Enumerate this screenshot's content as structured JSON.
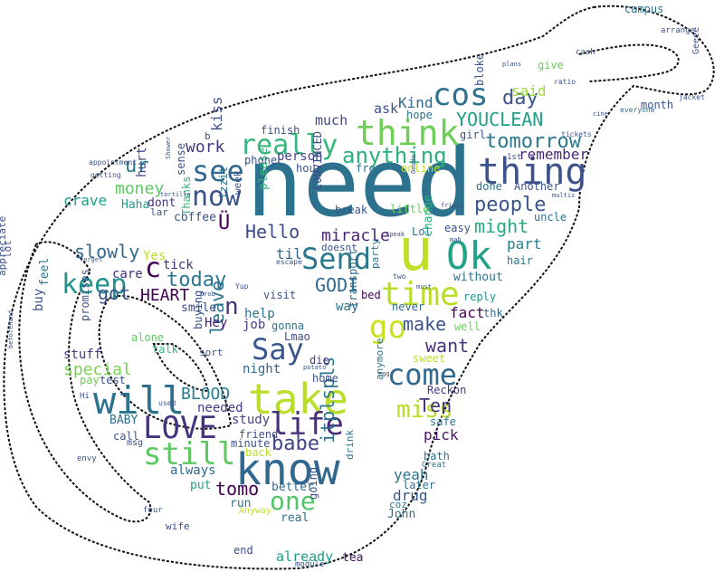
{
  "words": [
    {
      "text": "need",
      "color": "#2c728e"
    },
    {
      "text": "u",
      "color": "#bddf26"
    },
    {
      "text": "Ok",
      "color": "#20a386"
    },
    {
      "text": "know",
      "color": "#31688e"
    },
    {
      "text": "take",
      "color": "#b8de29"
    },
    {
      "text": "will",
      "color": "#2c728e"
    },
    {
      "text": "thing",
      "color": "#3b528b"
    },
    {
      "text": "think",
      "color": "#6ece58"
    },
    {
      "text": "time",
      "color": "#b8de29"
    },
    {
      "text": "Send",
      "color": "#2a788e"
    },
    {
      "text": "Say",
      "color": "#39568c"
    },
    {
      "text": "come",
      "color": "#31688e"
    },
    {
      "text": "LOVE",
      "color": "#46337e"
    },
    {
      "text": "life",
      "color": "#472d7b"
    },
    {
      "text": "still",
      "color": "#5ec962"
    },
    {
      "text": "go",
      "color": "#cae11f"
    },
    {
      "text": "miss",
      "color": "#b5de2b"
    },
    {
      "text": "really",
      "color": "#35b779"
    },
    {
      "text": "see",
      "color": "#31688e"
    },
    {
      "text": "now",
      "color": "#3b528b"
    },
    {
      "text": "cos",
      "color": "#2c728e"
    },
    {
      "text": "one",
      "color": "#52c569"
    },
    {
      "text": "keep",
      "color": "#21918c"
    },
    {
      "text": "babe",
      "color": "#414487"
    },
    {
      "text": "anything",
      "color": "#2ab07f"
    },
    {
      "text": "people",
      "color": "#39568c"
    },
    {
      "text": "tomorrow",
      "color": "#2a788e"
    },
    {
      "text": "YOUCLEAN",
      "color": "#1f9e89"
    },
    {
      "text": "day",
      "color": "#39568c"
    },
    {
      "text": "Hello",
      "color": "#3e4a89"
    },
    {
      "text": "today",
      "color": "#2a788e"
    },
    {
      "text": "c",
      "color": "#440154"
    },
    {
      "text": "n",
      "color": "#46337e"
    },
    {
      "text": "slowly",
      "color": "#31688e"
    },
    {
      "text": "HEART",
      "color": "#440154"
    },
    {
      "text": "BLOOD",
      "color": "#287c8e"
    },
    {
      "text": "GODI",
      "color": "#31688e"
    },
    {
      "text": "got",
      "color": "#3b528b"
    },
    {
      "text": "money",
      "color": "#5ec962"
    },
    {
      "text": "work",
      "color": "#453781"
    },
    {
      "text": "ur",
      "color": "#2a788e"
    },
    {
      "text": "crave",
      "color": "#1f9e89"
    },
    {
      "text": "might",
      "color": "#25ab82"
    },
    {
      "text": "make",
      "color": "#3b528b"
    },
    {
      "text": "want",
      "color": "#46337e"
    },
    {
      "text": "Ten",
      "color": "#46337e"
    },
    {
      "text": "tomo",
      "color": "#440154"
    },
    {
      "text": "itplspls",
      "color": "#2c728e"
    },
    {
      "text": "miracle",
      "color": "#482878"
    },
    {
      "text": "Kind",
      "color": "#31688e"
    },
    {
      "text": "leave",
      "color": "#2c728e"
    },
    {
      "text": "special",
      "color": "#7ad151"
    },
    {
      "text": "drug",
      "color": "#375a8c"
    },
    {
      "text": "yeah",
      "color": "#2c728e"
    },
    {
      "text": "pick",
      "color": "#471365"
    },
    {
      "text": "fact",
      "color": "#440154"
    },
    {
      "text": "remember",
      "color": "#482878"
    },
    {
      "text": "part",
      "color": "#287c8e"
    },
    {
      "text": "much",
      "color": "#3e4a89"
    },
    {
      "text": "ask",
      "color": "#3b528b"
    },
    {
      "text": "said",
      "color": "#a0da39"
    },
    {
      "text": "kiss",
      "color": "#3b528b"
    },
    {
      "text": "hurt",
      "color": "#3e4a89"
    },
    {
      "text": "dont",
      "color": "#46337e"
    },
    {
      "text": "Haha",
      "color": "#1f9e89"
    },
    {
      "text": "Yes",
      "color": "#bddf26"
    },
    {
      "text": "tick",
      "color": "#472d7b"
    },
    {
      "text": "care",
      "color": "#472d7b"
    },
    {
      "text": "til",
      "color": "#31688e"
    },
    {
      "text": "help",
      "color": "#2c728e"
    },
    {
      "text": "job",
      "color": "#424086"
    },
    {
      "text": "Hey",
      "color": "#482475"
    },
    {
      "text": "smile",
      "color": "#3e4a89"
    },
    {
      "text": "buy",
      "color": "#3b528b"
    },
    {
      "text": "feel",
      "color": "#2c728e"
    },
    {
      "text": "stuff",
      "color": "#443983"
    },
    {
      "text": "needed",
      "color": "#443983"
    },
    {
      "text": "BABY",
      "color": "#2c728e"
    },
    {
      "text": "study",
      "color": "#414487"
    },
    {
      "text": "always",
      "color": "#31688e"
    },
    {
      "text": "friend",
      "color": "#3b528b"
    },
    {
      "text": "minute",
      "color": "#3b528b"
    },
    {
      "text": "put",
      "color": "#1f9e89"
    },
    {
      "text": "run",
      "color": "#2a788e"
    },
    {
      "text": "better",
      "color": "#31688e"
    },
    {
      "text": "real",
      "color": "#2c728e"
    },
    {
      "text": "already",
      "color": "#1f9e89"
    },
    {
      "text": "end",
      "color": "#3b528b"
    },
    {
      "text": "tea",
      "color": "#471365"
    },
    {
      "text": "John",
      "color": "#2c728e"
    },
    {
      "text": "later",
      "color": "#2c728e"
    },
    {
      "text": "bath",
      "color": "#2c728e"
    },
    {
      "text": "night",
      "color": "#31688e"
    },
    {
      "text": "gonna",
      "color": "#2c728e"
    },
    {
      "text": "Lmao",
      "color": "#3e4a89"
    },
    {
      "text": "visit",
      "color": "#3b528b"
    },
    {
      "text": "die",
      "color": "#443983"
    },
    {
      "text": "home",
      "color": "#3b528b"
    },
    {
      "text": "never",
      "color": "#31688e"
    },
    {
      "text": "way",
      "color": "#2c728e"
    },
    {
      "text": "bed",
      "color": "#440154"
    },
    {
      "text": "reply",
      "color": "#21918c"
    },
    {
      "text": "without",
      "color": "#2c728e"
    },
    {
      "text": "thk",
      "color": "#31688e"
    },
    {
      "text": "well",
      "color": "#6ece58"
    },
    {
      "text": "Reckon",
      "color": "#443983"
    },
    {
      "text": "safe",
      "color": "#2c728e"
    },
    {
      "text": "sweet",
      "color": "#bddf26"
    },
    {
      "text": "test",
      "color": "#3b528b"
    },
    {
      "text": "pay",
      "color": "#6ece58"
    },
    {
      "text": "promises",
      "color": "#3b528b"
    },
    {
      "text": "alone",
      "color": "#5ec962"
    },
    {
      "text": "talk",
      "color": "#35b779"
    },
    {
      "text": "Thanks",
      "color": "#35b779"
    },
    {
      "text": "buying",
      "color": "#3b528b"
    },
    {
      "text": "coffee",
      "color": "#3b528b"
    },
    {
      "text": "Ü",
      "color": "#440154"
    },
    {
      "text": "izzit",
      "color": "#2c728e"
    },
    {
      "text": "week",
      "color": "#3b528b"
    },
    {
      "text": "please",
      "color": "#35b779"
    },
    {
      "text": "CONVINCED",
      "color": "#3e4a89"
    },
    {
      "text": "break",
      "color": "#3b528b"
    },
    {
      "text": "little",
      "color": "#6ece58"
    },
    {
      "text": "Lol",
      "color": "#2c728e"
    },
    {
      "text": "easy",
      "color": "#3b528b"
    },
    {
      "text": "change",
      "color": "#2ab07f"
    },
    {
      "text": "party",
      "color": "#2c728e"
    },
    {
      "text": "transport",
      "color": "#2c728e"
    },
    {
      "text": "doesnt",
      "color": "#3b528b"
    },
    {
      "text": "hour",
      "color": "#3b528b"
    },
    {
      "text": "free",
      "color": "#2c728e"
    },
    {
      "text": "online",
      "color": "#bddf26"
    },
    {
      "text": "person",
      "color": "#414487"
    },
    {
      "text": "phone",
      "color": "#3b528b"
    },
    {
      "text": "finish",
      "color": "#3b528b"
    },
    {
      "text": "sense",
      "color": "#3b528b"
    },
    {
      "text": "hope",
      "color": "#2c728e"
    },
    {
      "text": "girl",
      "color": "#3b528b"
    },
    {
      "text": "bloke",
      "color": "#3b528b"
    },
    {
      "text": "done",
      "color": "#2c728e"
    },
    {
      "text": "Another",
      "color": "#3b528b"
    },
    {
      "text": "uncle",
      "color": "#2c728e"
    },
    {
      "text": "hair",
      "color": "#2c728e"
    },
    {
      "text": "month",
      "color": "#3b528b"
    },
    {
      "text": "give",
      "color": "#6ece58"
    },
    {
      "text": "campus",
      "color": "#2c728e"
    },
    {
      "text": "arrange",
      "color": "#3b528b"
    },
    {
      "text": "cash",
      "color": "#3b528b"
    },
    {
      "text": "Geeee",
      "color": "#3b528b"
    },
    {
      "text": "jacket",
      "color": "#3b528b"
    },
    {
      "text": "everyone",
      "color": "#2c728e"
    },
    {
      "text": "tickets",
      "color": "#3b528b"
    },
    {
      "text": "1st",
      "color": "#3b528b"
    },
    {
      "text": "ratio",
      "color": "#3b528b"
    },
    {
      "text": "appreciate",
      "color": "#3b528b"
    },
    {
      "text": "lot",
      "color": "#3b528b"
    },
    {
      "text": "envy",
      "color": "#3b528b"
    },
    {
      "text": "wife",
      "color": "#3b528b"
    },
    {
      "text": "four",
      "color": "#3b528b"
    },
    {
      "text": "call",
      "color": "#3b528b"
    },
    {
      "text": "msg",
      "color": "#3b528b"
    },
    {
      "text": "back",
      "color": "#bddf26"
    },
    {
      "text": "Anyway",
      "color": "#bddf26"
    },
    {
      "text": "going",
      "color": "#3b528b"
    },
    {
      "text": "module",
      "color": "#3b528b"
    },
    {
      "text": "drink",
      "color": "#2c728e"
    },
    {
      "text": "coz",
      "color": "#2c728e"
    },
    {
      "text": "Great",
      "color": "#2c728e"
    },
    {
      "text": "anymore",
      "color": "#2c728e"
    },
    {
      "text": "sort",
      "color": "#3b528b"
    },
    {
      "text": "used",
      "color": "#3b528b"
    },
    {
      "text": "Hi",
      "color": "#3b528b"
    },
    {
      "text": "appointment",
      "color": "#3b528b"
    },
    {
      "text": "getting",
      "color": "#3b528b"
    },
    {
      "text": "b",
      "color": "#3b528b"
    },
    {
      "text": "lar",
      "color": "#3b528b"
    },
    {
      "text": "potato",
      "color": "#3b528b"
    },
    {
      "text": "escape",
      "color": "#3b528b"
    },
    {
      "text": "must",
      "color": "#3b528b"
    },
    {
      "text": "two",
      "color": "#3b528b"
    },
    {
      "text": "mah",
      "color": "#3b528b"
    },
    {
      "text": "friday",
      "color": "#3b528b"
    },
    {
      "text": "multis",
      "color": "#3b528b"
    },
    {
      "text": "Yup",
      "color": "#3b528b"
    },
    {
      "text": "prob",
      "color": "#3b528b"
    },
    {
      "text": "tortilla",
      "color": "#3b528b"
    },
    {
      "text": "Shower",
      "color": "#3b528b"
    },
    {
      "text": "forget",
      "color": "#3b528b"
    },
    {
      "text": "beforehand",
      "color": "#3b528b"
    },
    {
      "text": "cine",
      "color": "#3b528b"
    },
    {
      "text": "egg",
      "color": "#3b528b"
    },
    {
      "text": "Speak",
      "color": "#3b528b"
    },
    {
      "text": "Goodo",
      "color": "#3b528b"
    },
    {
      "text": "plans",
      "color": "#3b528b"
    }
  ]
}
